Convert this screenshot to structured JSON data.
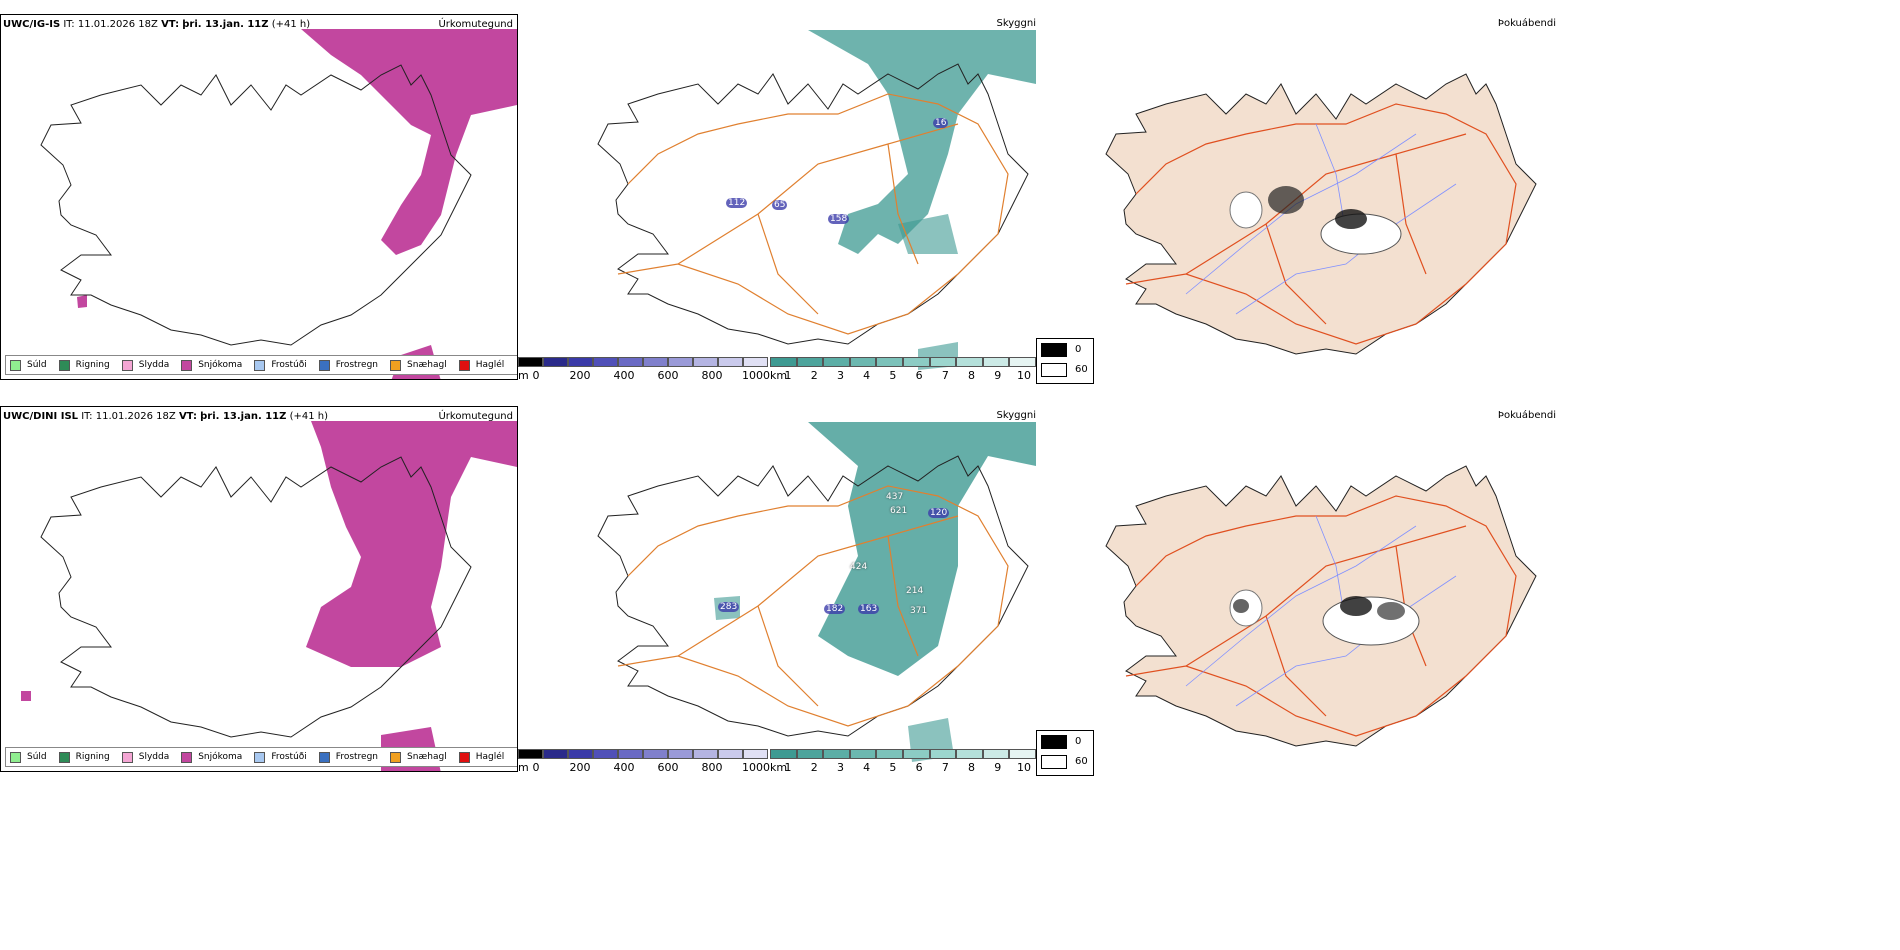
{
  "colors": {
    "snow": "#c2479f",
    "cloud": "#3e9a92",
    "paper": "#f3e0d0",
    "road": "#e05020",
    "river": "#8090ff"
  },
  "precip_legend": [
    {
      "label": "Súld",
      "color": "#90ee90"
    },
    {
      "label": "Rigning",
      "color": "#2e8b57"
    },
    {
      "label": "Slydda",
      "color": "#f4a6d4"
    },
    {
      "label": "Snjókoma",
      "color": "#c2479f"
    },
    {
      "label": "Frostúði",
      "color": "#a8c8f0"
    },
    {
      "label": "Frostregn",
      "color": "#3a70c0"
    },
    {
      "label": "Snæhagl",
      "color": "#f0a020"
    },
    {
      "label": "Haglél",
      "color": "#e01010"
    }
  ],
  "rows": [
    {
      "model_name": "UWC/IG-IS",
      "it_label": "IT:",
      "it_value": "11.01.2026 18Z",
      "vt_label": "VT:",
      "vt_value": "þri. 13.jan. 11Z",
      "lead": "(+41 h)",
      "panels": {
        "precip": {
          "title": "Úrkomutegund"
        },
        "cloud": {
          "title": "Skyggni",
          "values": [
            "16",
            "112",
            "65",
            "158"
          ]
        },
        "fog": {
          "title": "Þokuábendi"
        }
      }
    },
    {
      "model_name": "UWC/DINI ISL",
      "it_label": "IT:",
      "it_value": "11.01.2026 18Z",
      "vt_label": "VT:",
      "vt_value": "þri. 13.jan. 11Z",
      "lead": "(+41 h)",
      "panels": {
        "precip": {
          "title": "Úrkomutegund"
        },
        "cloud": {
          "title": "Skyggni",
          "values": [
            "437",
            "621",
            "120",
            "424",
            "214",
            "182",
            "163",
            "371",
            "283"
          ]
        },
        "fog": {
          "title": "Þokuábendi"
        }
      }
    }
  ],
  "ceiling_bar": {
    "unit": "m",
    "ticks": [
      "0",
      "200",
      "400",
      "600",
      "800",
      "1000"
    ],
    "colors": [
      "#000000",
      "#2a2a8a",
      "#3a3aa8",
      "#5050b8",
      "#6a6ac4",
      "#8080cc",
      "#9a9ad8",
      "#b4b4e2",
      "#cacaec",
      "#e0e0f4"
    ]
  },
  "visibility_bar": {
    "unit": "km",
    "ticks": [
      "1",
      "2",
      "3",
      "4",
      "5",
      "6",
      "7",
      "8",
      "9",
      "10"
    ],
    "colors": [
      "#3e9a92",
      "#4da49c",
      "#5caea6",
      "#6cb8b0",
      "#7cc2ba",
      "#8cccc4",
      "#9cd6ce",
      "#b4e0da",
      "#cceae6",
      "#e6f4f2"
    ]
  },
  "fog_legend": {
    "labels": [
      "0",
      "60"
    ]
  }
}
